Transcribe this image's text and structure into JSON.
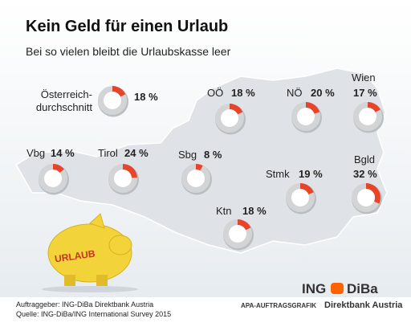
{
  "chart_data": {
    "type": "donut",
    "title": "Kein Geld für einen Urlaub",
    "subtitle": "Bei so vielen bleibt die Urlaubskasse leer",
    "categories": [
      "Österreich-durchschnitt",
      "OÖ",
      "NÖ",
      "Wien",
      "Vbg",
      "Tirol",
      "Sbg",
      "Stmk",
      "Bgld",
      "Ktn"
    ],
    "values": [
      18,
      18,
      20,
      17,
      14,
      24,
      8,
      19,
      32,
      18
    ],
    "value_labels": [
      "18 %",
      "18 %",
      "20 %",
      "17 %",
      "14 %",
      "24 %",
      "8 %",
      "19 %",
      "32 %",
      "18 %"
    ],
    "color": "#e8442a",
    "rest_color": "#d2d4d6"
  },
  "illustration_text": "URLAUB",
  "footer": [
    "Auftraggeber: ING-DiBa Direktbank Austria",
    "Quelle: ING-DiBa/ING International Survey 2015"
  ],
  "branding": {
    "ing": "ING",
    "diba": "DiBa",
    "apa": "APA-AUFTRAGSGRAFIK",
    "tagline": "Direktbank Austria"
  }
}
